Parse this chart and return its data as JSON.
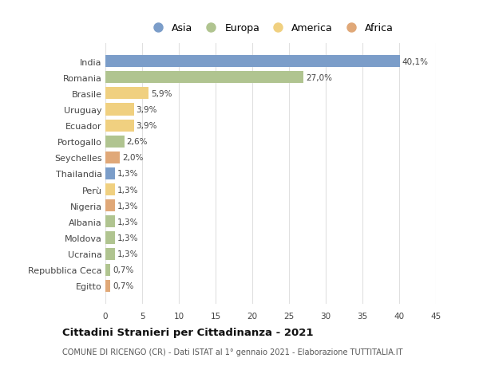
{
  "categories": [
    "India",
    "Romania",
    "Brasile",
    "Uruguay",
    "Ecuador",
    "Portogallo",
    "Seychelles",
    "Thailandia",
    "Perù",
    "Nigeria",
    "Albania",
    "Moldova",
    "Ucraina",
    "Repubblica Ceca",
    "Egitto"
  ],
  "values": [
    40.1,
    27.0,
    5.9,
    3.9,
    3.9,
    2.6,
    2.0,
    1.3,
    1.3,
    1.3,
    1.3,
    1.3,
    1.3,
    0.7,
    0.7
  ],
  "labels": [
    "40,1%",
    "27,0%",
    "5,9%",
    "3,9%",
    "3,9%",
    "2,6%",
    "2,0%",
    "1,3%",
    "1,3%",
    "1,3%",
    "1,3%",
    "1,3%",
    "1,3%",
    "0,7%",
    "0,7%"
  ],
  "continents": [
    "Asia",
    "Europa",
    "America",
    "America",
    "America",
    "Europa",
    "Africa",
    "Asia",
    "America",
    "Africa",
    "Europa",
    "Europa",
    "Europa",
    "Europa",
    "Africa"
  ],
  "colors": {
    "Asia": "#7b9dc9",
    "Europa": "#b0c490",
    "America": "#f0d080",
    "Africa": "#e0a878"
  },
  "legend_order": [
    "Asia",
    "Europa",
    "America",
    "Africa"
  ],
  "title": "Cittadini Stranieri per Cittadinanza - 2021",
  "subtitle": "COMUNE DI RICENGO (CR) - Dati ISTAT al 1° gennaio 2021 - Elaborazione TUTTITALIA.IT",
  "xlim": [
    0,
    45
  ],
  "xticks": [
    0,
    5,
    10,
    15,
    20,
    25,
    30,
    35,
    40,
    45
  ],
  "bg_color": "#ffffff",
  "grid_color": "#e0e0e0",
  "bar_height": 0.75
}
